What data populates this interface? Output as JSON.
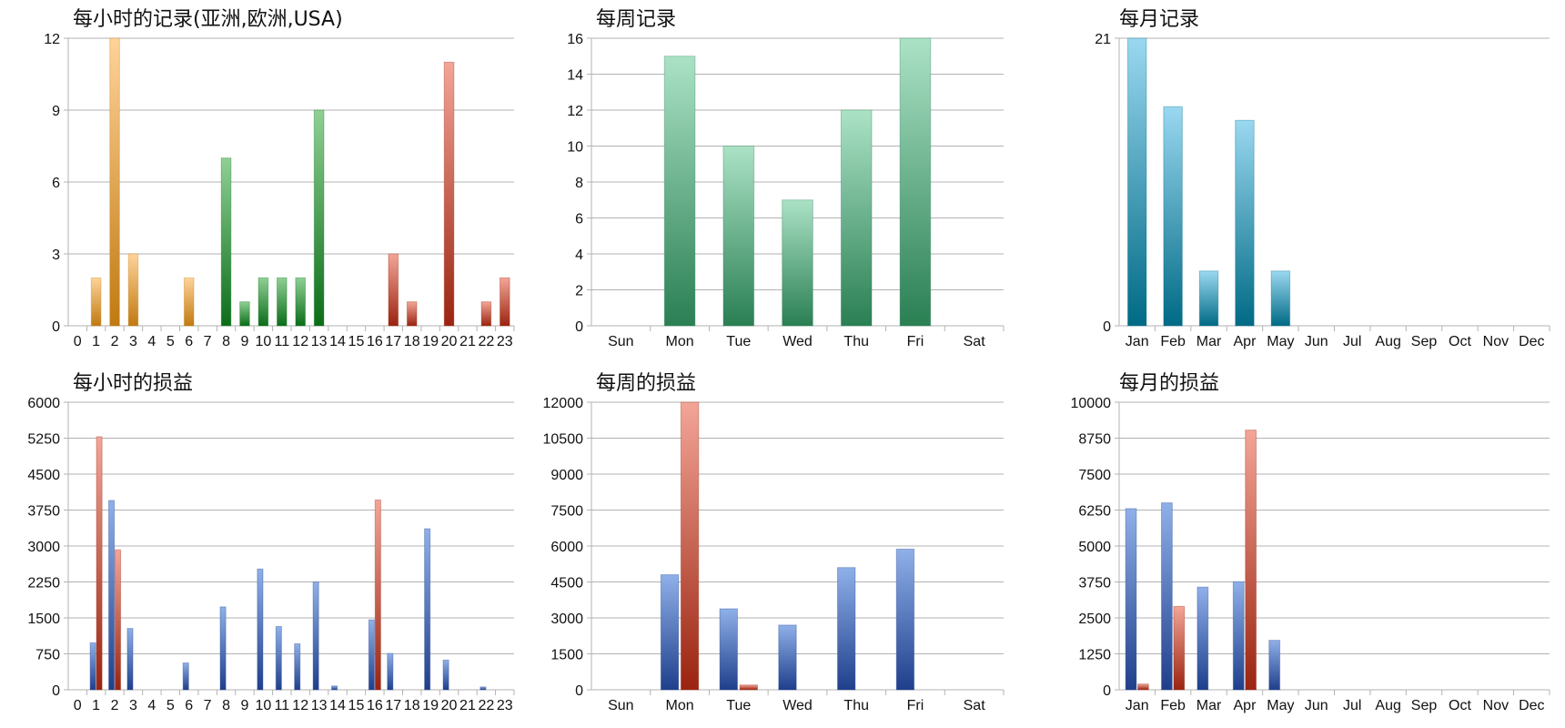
{
  "colors": {
    "orange": [
      "#ffd39a",
      "#c07a10"
    ],
    "green": [
      "#8fd094",
      "#0b6d18"
    ],
    "red": [
      "#f3a597",
      "#9a2410"
    ],
    "teal": [
      "#9ad8f0",
      "#006a85"
    ],
    "mint": [
      "#abe2c6",
      "#2a7f53"
    ],
    "blue": [
      "#8fb0e8",
      "#1f3f8c"
    ]
  },
  "chart_data": [
    {
      "type": "bar",
      "title": "每小时的记录(亚洲,欧洲,USA)",
      "categories": [
        "0",
        "1",
        "2",
        "3",
        "4",
        "5",
        "6",
        "7",
        "8",
        "9",
        "10",
        "11",
        "12",
        "13",
        "14",
        "15",
        "16",
        "17",
        "18",
        "19",
        "20",
        "21",
        "22",
        "23"
      ],
      "series": [
        {
          "values": [
            0,
            2,
            12,
            3,
            0,
            0,
            2,
            0,
            7,
            1,
            2,
            2,
            2,
            9,
            0,
            0,
            0,
            3,
            1,
            0,
            11,
            0,
            1,
            2
          ],
          "colors": [
            "orange",
            "orange",
            "orange",
            "orange",
            "orange",
            "orange",
            "orange",
            "green",
            "green",
            "green",
            "green",
            "green",
            "green",
            "green",
            "green",
            "red",
            "red",
            "red",
            "red",
            "red",
            "red",
            "red",
            "red",
            "red"
          ]
        }
      ],
      "yticks": [
        0,
        3,
        6,
        9,
        12
      ],
      "ylim": [
        0,
        12
      ],
      "grid": true
    },
    {
      "type": "bar",
      "title": "每周记录",
      "categories": [
        "Sun",
        "Mon",
        "Tue",
        "Wed",
        "Thu",
        "Fri",
        "Sat"
      ],
      "series": [
        {
          "values": [
            0,
            15,
            10,
            7,
            12,
            16,
            0
          ],
          "color": "mint"
        }
      ],
      "yticks": [
        0,
        2,
        4,
        6,
        8,
        10,
        12,
        14,
        16
      ],
      "ylim": [
        0,
        16
      ],
      "grid": true
    },
    {
      "type": "bar",
      "title": "每月记录",
      "categories": [
        "Jan",
        "Feb",
        "Mar",
        "Apr",
        "May",
        "Jun",
        "Jul",
        "Aug",
        "Sep",
        "Oct",
        "Nov",
        "Dec"
      ],
      "series": [
        {
          "values": [
            21,
            16,
            4,
            15,
            4,
            0,
            0,
            0,
            0,
            0,
            0,
            0
          ],
          "color": "teal"
        }
      ],
      "yticks": [
        0,
        21
      ],
      "ylim": [
        0,
        21
      ],
      "grid": true
    },
    {
      "type": "bar",
      "title": "每小时的损益",
      "categories": [
        "0",
        "1",
        "2",
        "3",
        "4",
        "5",
        "6",
        "7",
        "8",
        "9",
        "10",
        "11",
        "12",
        "13",
        "14",
        "15",
        "16",
        "17",
        "18",
        "19",
        "20",
        "21",
        "22",
        "23"
      ],
      "series": [
        {
          "values": [
            0,
            980,
            3950,
            1280,
            0,
            0,
            560,
            0,
            1730,
            0,
            2520,
            1320,
            960,
            2250,
            80,
            0,
            1460,
            760,
            0,
            3360,
            620,
            0,
            60,
            0
          ],
          "color": "blue"
        },
        {
          "values": [
            0,
            5280,
            2920,
            0,
            0,
            0,
            0,
            0,
            0,
            0,
            0,
            0,
            0,
            0,
            0,
            0,
            3960,
            0,
            0,
            0,
            0,
            0,
            0,
            0
          ],
          "color": "red"
        }
      ],
      "yticks": [
        0,
        750,
        1500,
        2250,
        3000,
        3750,
        4500,
        5250,
        6000
      ],
      "ylim": [
        0,
        6000
      ],
      "grid": true
    },
    {
      "type": "bar",
      "title": "每周的损益",
      "categories": [
        "Sun",
        "Mon",
        "Tue",
        "Wed",
        "Thu",
        "Fri",
        "Sat"
      ],
      "series": [
        {
          "values": [
            0,
            4800,
            3380,
            2700,
            5100,
            5870,
            0
          ],
          "color": "blue"
        },
        {
          "values": [
            0,
            12000,
            200,
            0,
            0,
            0,
            0
          ],
          "color": "red"
        }
      ],
      "yticks": [
        0,
        1500,
        3000,
        4500,
        6000,
        7500,
        9000,
        10500,
        12000
      ],
      "ylim": [
        0,
        12000
      ],
      "grid": true
    },
    {
      "type": "bar",
      "title": "每月的损益",
      "categories": [
        "Jan",
        "Feb",
        "Mar",
        "Apr",
        "May",
        "Jun",
        "Jul",
        "Aug",
        "Sep",
        "Oct",
        "Nov",
        "Dec"
      ],
      "series": [
        {
          "values": [
            6300,
            6500,
            3570,
            3760,
            1720,
            0,
            0,
            0,
            0,
            0,
            0,
            0
          ],
          "color": "blue"
        },
        {
          "values": [
            200,
            2900,
            0,
            9030,
            0,
            0,
            0,
            0,
            0,
            0,
            0,
            0
          ],
          "color": "red"
        }
      ],
      "yticks": [
        0,
        1250,
        2500,
        3750,
        5000,
        6250,
        7500,
        8750,
        10000
      ],
      "ylim": [
        0,
        10000
      ],
      "grid": true
    }
  ]
}
